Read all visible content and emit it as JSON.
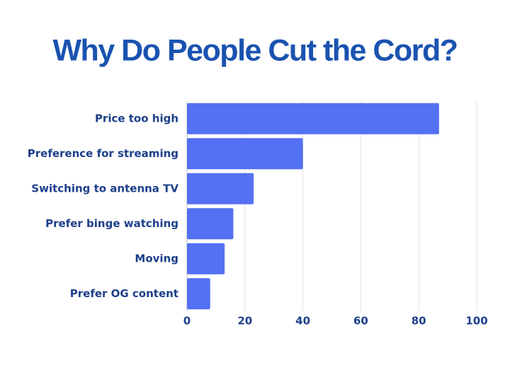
{
  "chart_data": {
    "type": "bar",
    "orientation": "horizontal",
    "title": "Why Do People Cut the Cord?",
    "categories": [
      "Price too high",
      "Preference for streaming",
      "Switching to antenna TV",
      "Prefer binge watching",
      "Moving",
      "Prefer OG content"
    ],
    "values": [
      87,
      40,
      23,
      16,
      13,
      8
    ],
    "color": "#5470f3",
    "xlim": [
      0,
      100
    ],
    "xticks": [
      0,
      20,
      40,
      60,
      80,
      100
    ],
    "grid": true
  }
}
